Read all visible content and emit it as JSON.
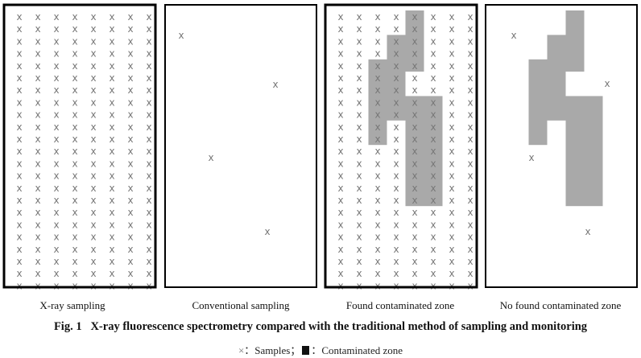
{
  "panels": [
    {
      "label": "X-ray sampling",
      "mode": "grid"
    },
    {
      "label": "Conventional sampling",
      "mode": "sparse"
    },
    {
      "label": "Found contaminated zone",
      "mode": "grid+zone"
    },
    {
      "label": "No found contaminated zone",
      "mode": "sparse+zone"
    }
  ],
  "grid": {
    "columns": 8,
    "rows": 23
  },
  "zone_cells": {
    "col2": [
      4,
      10
    ],
    "col3": [
      2,
      8
    ],
    "col4a": [
      0,
      4
    ],
    "col4b": [
      7,
      15
    ],
    "col5": [
      7,
      15
    ]
  },
  "caption": {
    "fig": "Fig. 1",
    "text": "X-ray fluorescence spectrometry compared with the traditional method of sampling and monitoring"
  },
  "legend": {
    "sample_symbol": "×",
    "sample_text": "：Samples；",
    "zone_text": "：Contaminated zone"
  },
  "colors": {
    "zone": "#a9a9a9",
    "sample": "#777777",
    "border": "#000000"
  }
}
